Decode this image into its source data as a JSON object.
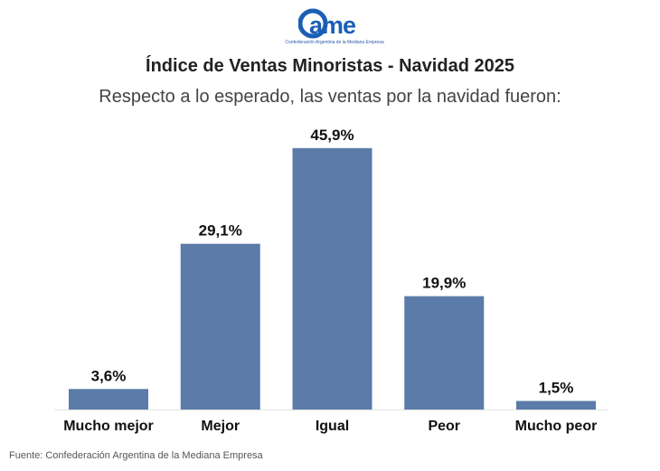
{
  "logo": {
    "text": "came",
    "tagline": "Confederación Argentina de la Mediana Empresa",
    "color": "#1b5fb5"
  },
  "title": "Índice de Ventas Minoristas - Navidad 2025",
  "subtitle": "Respecto a lo esperado, las ventas por la navidad fueron:",
  "source": "Fuente: Confederación Argentina de la Mediana Empresa",
  "chart_data": {
    "type": "bar",
    "categories": [
      "Mucho mejor",
      "Mejor",
      "Igual",
      "Peor",
      "Mucho peor"
    ],
    "values": [
      3.6,
      29.1,
      45.9,
      19.9,
      1.5
    ],
    "labels": [
      "3,6%",
      "29,1%",
      "45,9%",
      "19,9%",
      "1,5%"
    ],
    "title": "Índice de Ventas Minoristas - Navidad 2025",
    "subtitle": "Respecto a lo esperado, las ventas por la navidad fueron:",
    "xlabel": "",
    "ylabel": "",
    "ylim": [
      0,
      50
    ],
    "grid": false,
    "bar_color": "#5b7ba8"
  }
}
